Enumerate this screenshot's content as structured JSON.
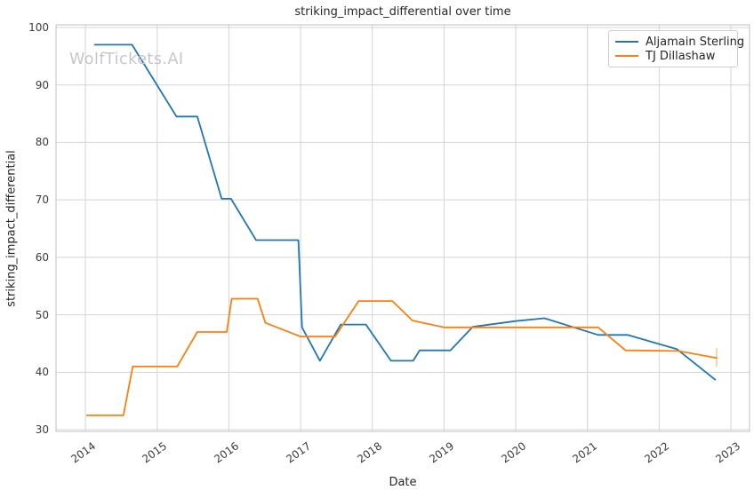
{
  "watermark": "WolfTickets.AI",
  "chart_data": {
    "type": "line",
    "title": "striking_impact_differential over time",
    "xlabel": "Date",
    "ylabel": "striking_impact_differential",
    "x_ticks": [
      "2014",
      "2015",
      "2016",
      "2017",
      "2018",
      "2019",
      "2020",
      "2021",
      "2022",
      "2023"
    ],
    "y_ticks": [
      30,
      40,
      50,
      60,
      70,
      80,
      90,
      100
    ],
    "xlim": [
      2013.59,
      2023.26
    ],
    "ylim": [
      29.7,
      100.46
    ],
    "grid": true,
    "grid_color": "#d4d4d4",
    "spine_color": "#c0c0c0",
    "legend_position": "upper right",
    "series": [
      {
        "name": "Aljamain Sterling",
        "color": "#1f77b4",
        "points": [
          [
            2014.13,
            97.0
          ],
          [
            2014.65,
            97.0
          ],
          [
            2015.27,
            84.5
          ],
          [
            2015.56,
            84.5
          ],
          [
            2015.9,
            70.2
          ],
          [
            2016.03,
            70.2
          ],
          [
            2016.38,
            63.0
          ],
          [
            2016.97,
            63.0
          ],
          [
            2017.02,
            47.8
          ],
          [
            2017.27,
            42.0
          ],
          [
            2017.56,
            48.3
          ],
          [
            2017.91,
            48.3
          ],
          [
            2018.26,
            42.0
          ],
          [
            2018.57,
            42.0
          ],
          [
            2018.66,
            43.8
          ],
          [
            2019.09,
            43.8
          ],
          [
            2019.4,
            47.9
          ],
          [
            2020.0,
            48.9
          ],
          [
            2020.4,
            49.4
          ],
          [
            2021.15,
            46.5
          ],
          [
            2021.56,
            46.5
          ],
          [
            2022.25,
            44.0
          ],
          [
            2022.78,
            38.7
          ]
        ]
      },
      {
        "name": "TJ Dillashaw",
        "color": "#ff7f0e",
        "points": [
          [
            2014.02,
            32.5
          ],
          [
            2014.53,
            32.5
          ],
          [
            2014.66,
            41.0
          ],
          [
            2015.28,
            41.0
          ],
          [
            2015.56,
            47.0
          ],
          [
            2015.97,
            47.0
          ],
          [
            2016.04,
            52.8
          ],
          [
            2016.4,
            52.8
          ],
          [
            2016.51,
            48.6
          ],
          [
            2017.0,
            46.2
          ],
          [
            2017.48,
            46.2
          ],
          [
            2017.81,
            52.4
          ],
          [
            2018.28,
            52.4
          ],
          [
            2018.56,
            49.0
          ],
          [
            2019.0,
            47.8
          ],
          [
            2021.15,
            47.8
          ],
          [
            2021.53,
            43.8
          ],
          [
            2022.27,
            43.7
          ],
          [
            2022.8,
            42.5
          ]
        ],
        "end_cap": {
          "x": 2022.8,
          "y_from": 41.0,
          "y_to": 44.2
        }
      }
    ]
  }
}
